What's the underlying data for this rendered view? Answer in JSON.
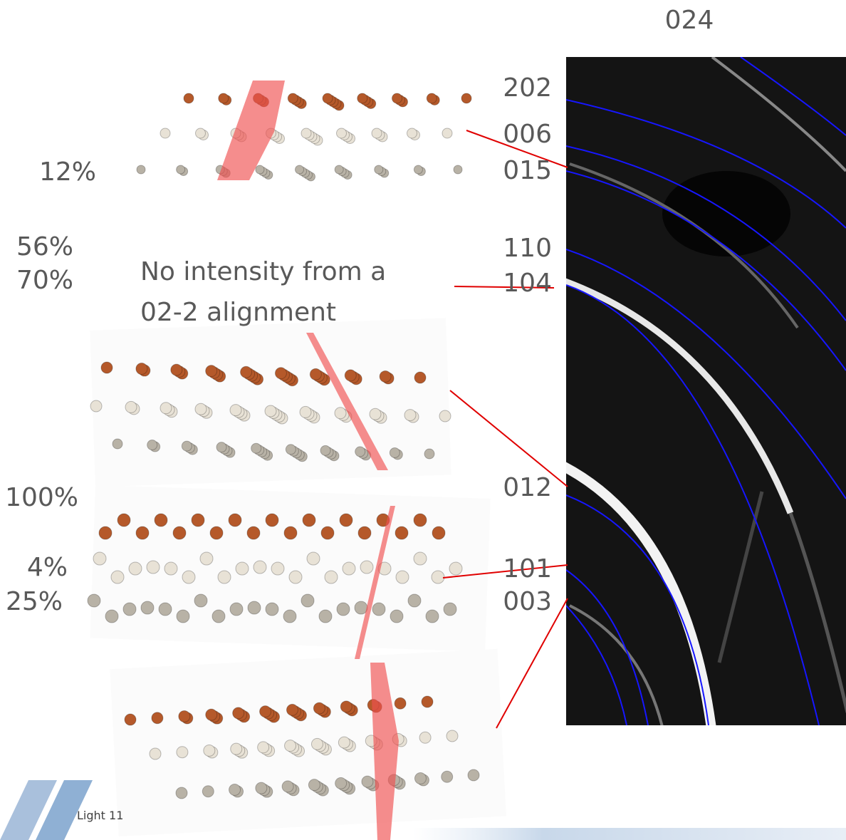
{
  "header": {
    "title": "024"
  },
  "ring_labels": [
    "202",
    "006",
    "015",
    "110",
    "104",
    "012",
    "101",
    "003"
  ],
  "intensities": [
    "12%",
    "56%",
    "70%",
    "100%",
    "4%",
    "25%"
  ],
  "annotation": {
    "lines": [
      "No intensity from a",
      "02-2 alignment"
    ]
  },
  "footer": {
    "text": "Light 11"
  }
}
